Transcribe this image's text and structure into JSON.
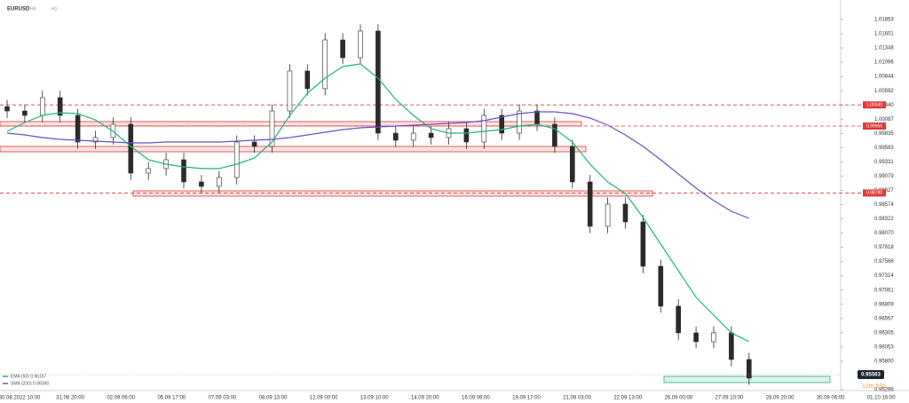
{
  "chart_data": {
    "type": "candlestick",
    "symbol": "EURUSD",
    "timeframes": [
      "H4",
      "H1"
    ],
    "x_labels": [
      "30.08.2022  10:00",
      "31.08  20:00",
      "02.09  06:00",
      "05.09  17:00",
      "07.09  03:00",
      "08.09  13:00",
      "12.09  00:00",
      "13.09  10:00",
      "14.09  20:00",
      "16.09  06:00",
      "19.09  17:00",
      "21.09  03:00",
      "22.09  13:00",
      "26.09  00:00",
      "27.09  10:00",
      "28.09  20:00",
      "30.09  06:00",
      "01.10  16:00"
    ],
    "candles": {
      "open": [
        1.0031,
        1.00233,
        1.00155,
        1.00469,
        1.00155,
        0.99683,
        0.99762,
        0.99998,
        0.99133,
        0.99212,
        0.99369,
        0.98976,
        0.98897,
        0.99054,
        0.99683,
        0.99605,
        1.00233,
        1.00941,
        1.00627,
        1.01491,
        1.01177,
        1.01649,
        0.9984,
        0.99715,
        0.9984,
        0.99762,
        0.99919,
        0.99683,
        1.00155,
        0.9984,
        1.00233,
        0.99998,
        0.99605,
        0.98976,
        0.9819,
        0.98583,
        0.98268,
        0.97482,
        0.96775,
        0.96303,
        0.96146,
        0.96303,
        0.95831
      ],
      "high": [
        1.0043,
        1.0035,
        1.0059,
        1.0059,
        1.0027,
        0.9988,
        1.0012,
        1.0012,
        0.9933,
        0.9949,
        0.9949,
        0.991,
        0.9917,
        0.998,
        0.998,
        1.0035,
        1.0106,
        1.0106,
        1.0161,
        1.0161,
        1.0177,
        1.0177,
        0.9996,
        0.9996,
        0.9996,
        1.0004,
        1.0004,
        1.0027,
        1.0027,
        1.0035,
        1.0035,
        1.0012,
        0.9972,
        0.991,
        0.987,
        0.987,
        0.9839,
        0.976,
        0.969,
        0.9642,
        0.9642,
        0.9642,
        0.9595
      ],
      "low": [
        1.0011,
        1.0003,
        1.0003,
        1.0003,
        0.9956,
        0.9956,
        0.9964,
        0.9901,
        0.9901,
        0.9909,
        0.9886,
        0.9878,
        0.9878,
        0.9893,
        0.9949,
        0.9949,
        1.0011,
        1.0051,
        1.0051,
        1.0106,
        1.0106,
        0.9972,
        0.996,
        0.996,
        0.9964,
        0.9964,
        0.9956,
        0.9956,
        0.9972,
        0.9972,
        0.9988,
        0.9949,
        0.9886,
        0.9807,
        0.9807,
        0.9815,
        0.9736,
        0.9666,
        0.9618,
        0.9603,
        0.9603,
        0.9571,
        0.9538
      ],
      "close": [
        1.00233,
        1.00155,
        1.00469,
        1.00155,
        0.99683,
        0.99762,
        0.99998,
        0.99133,
        0.99212,
        0.99369,
        0.98976,
        0.98897,
        0.99054,
        0.99683,
        0.99605,
        1.00233,
        1.00941,
        1.00627,
        1.01491,
        1.01177,
        1.01649,
        0.9984,
        0.99715,
        0.9984,
        0.99762,
        0.99919,
        0.99683,
        1.00155,
        0.9984,
        1.00233,
        0.99998,
        0.99605,
        0.98976,
        0.9819,
        0.98583,
        0.98268,
        0.97482,
        0.96775,
        0.96303,
        0.96146,
        0.96303,
        0.95831,
        0.95501
      ],
      "up_color": "#ffffff",
      "down_color": "#2b2b2b",
      "wick_color": "#2b2b2b"
    },
    "series": [
      {
        "name": "EMA (50)  0.96167",
        "color": "#1fb57a",
        "values": [
          0.99872,
          1.00029,
          1.00155,
          1.00202,
          1.00186,
          1.00076,
          0.99872,
          0.99605,
          0.99369,
          0.9929,
          0.99243,
          0.99212,
          0.99212,
          0.9929,
          0.994,
          0.99683,
          1.00155,
          1.00548,
          1.00815,
          1.0102,
          1.01067,
          1.00815,
          1.00438,
          1.00155,
          0.99919,
          0.9984,
          0.9984,
          0.99872,
          0.99903,
          0.99966,
          0.99998,
          0.99919,
          0.99683,
          0.9929,
          0.98976,
          0.98771,
          0.98347,
          0.97875,
          0.97403,
          0.96932,
          0.96617,
          0.96303,
          0.96146
        ]
      },
      {
        "name": "SMA (200)  0.98398",
        "color": "#6a4fc9",
        "values": [
          0.9984,
          0.99809,
          0.99762,
          0.9973,
          0.99715,
          0.99699,
          0.99683,
          0.99667,
          0.99667,
          0.99683,
          0.99683,
          0.99683,
          0.99683,
          0.99699,
          0.99715,
          0.9973,
          0.99762,
          0.99809,
          0.99856,
          0.99903,
          0.99935,
          0.9995,
          0.99966,
          0.99982,
          0.99998,
          1.00013,
          1.00029,
          1.00061,
          1.00124,
          1.00186,
          1.00218,
          1.00218,
          1.00186,
          1.00108,
          0.99982,
          0.99809,
          0.99605,
          0.99369,
          0.99117,
          0.98866,
          0.98645,
          0.98457,
          0.98331
        ]
      }
    ],
    "levels": [
      {
        "value": 1.0034,
        "label": "1.00340"
      },
      {
        "value": 0.99966,
        "label": "0.99966"
      },
      {
        "value": 0.9878,
        "label": "0.98780"
      }
    ],
    "level_color": "#e03a3a",
    "zones": [
      {
        "low": 0.99966,
        "high": 1.00045,
        "color": "#e03a3a"
      },
      {
        "low": 0.9951,
        "high": 0.99605,
        "color": "#e03a3a"
      },
      {
        "low": 0.98724,
        "high": 0.98818,
        "color": "#e03a3a"
      },
      {
        "low": 0.95422,
        "high": 0.95532,
        "color": "#1fb57a"
      }
    ],
    "current_price": 0.95563,
    "timer": "12m  53s",
    "ylim": [
      0.95233,
      1.0212
    ],
    "yticks": [
      1.01853,
      1.01601,
      1.01348,
      1.01096,
      1.00844,
      1.00592,
      {
        "value": 1.0034,
        "label": "1.00340"
      },
      1.00087,
      0.99835,
      0.99583,
      0.99331,
      0.99079,
      0.98827,
      0.98574,
      0.98322,
      {
        "value": 0.9807,
        "label": "0.98070"
      },
      0.97818,
      0.97566,
      0.97314,
      0.97061,
      0.96809,
      0.96557,
      0.96305,
      0.96053,
      {
        "value": 0.958,
        "label": "0.95800"
      },
      0.95296
    ]
  }
}
